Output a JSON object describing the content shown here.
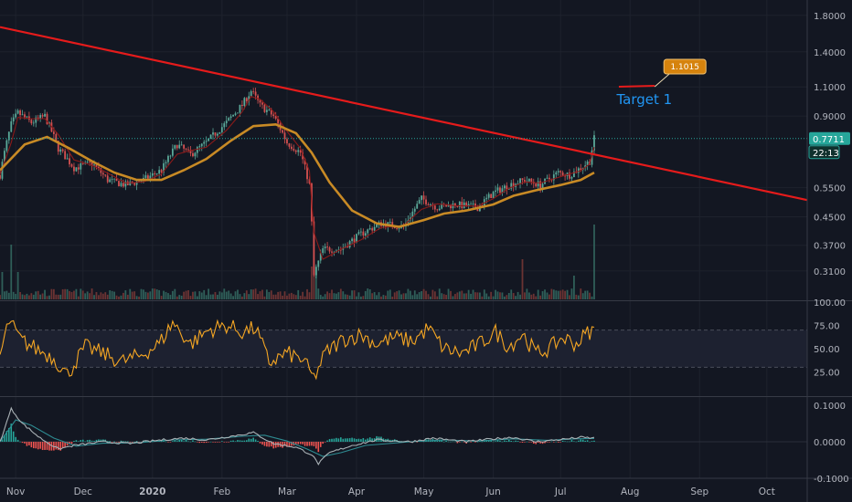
{
  "colors": {
    "background": "#131722",
    "grid": "#1e222d",
    "axis_text": "#b2b5be",
    "trendline": "#e51b1b",
    "ma_slow": "#c88a25",
    "ma_fast": "#8a1a1a",
    "candle_up": "#5aa898",
    "candle_down": "#d45050",
    "price_tag": "#26a69a",
    "rsi": "#f5a623",
    "macd": "#a9b1b5",
    "signal": "#2e8b91",
    "callout": "#d6830d",
    "target_text": "#2196f3"
  },
  "chart_data": [
    {
      "type": "candlestick",
      "panel": "price",
      "y_scale": "log",
      "ylim": [
        0.255,
        2.0
      ],
      "price_ticks": [
        "1.8000",
        "1.4000",
        "1.1000",
        "0.9000",
        "0.5500",
        "0.4500",
        "0.3700",
        "0.3100"
      ],
      "x_range": [
        "2019-10-25",
        "2020-10-19"
      ],
      "x_ticks": [
        {
          "label": "Nov",
          "date": "2019-11-01"
        },
        {
          "label": "Dec",
          "date": "2019-12-01"
        },
        {
          "label": "2020",
          "date": "2020-01-01"
        },
        {
          "label": "Feb",
          "date": "2020-02-01"
        },
        {
          "label": "Mar",
          "date": "2020-03-01"
        },
        {
          "label": "Apr",
          "date": "2020-04-01"
        },
        {
          "label": "May",
          "date": "2020-05-01"
        },
        {
          "label": "Jun",
          "date": "2020-06-01"
        },
        {
          "label": "Jul",
          "date": "2020-07-01"
        },
        {
          "label": "Aug",
          "date": "2020-08-01"
        },
        {
          "label": "Sep",
          "date": "2020-09-01"
        },
        {
          "label": "Oct",
          "date": "2020-10-01"
        }
      ],
      "close_path": [
        [
          "2019-10-25",
          0.6
        ],
        [
          "2019-10-30",
          0.85
        ],
        [
          "2019-11-02",
          0.92
        ],
        [
          "2019-11-08",
          0.86
        ],
        [
          "2019-11-14",
          0.9
        ],
        [
          "2019-11-20",
          0.72
        ],
        [
          "2019-11-27",
          0.63
        ],
        [
          "2019-12-05",
          0.65
        ],
        [
          "2019-12-12",
          0.58
        ],
        [
          "2019-12-20",
          0.56
        ],
        [
          "2019-12-28",
          0.58
        ],
        [
          "2020-01-05",
          0.62
        ],
        [
          "2020-01-12",
          0.74
        ],
        [
          "2020-01-18",
          0.69
        ],
        [
          "2020-01-25",
          0.75
        ],
        [
          "2020-02-03",
          0.86
        ],
        [
          "2020-02-10",
          0.97
        ],
        [
          "2020-02-14",
          1.07
        ],
        [
          "2020-02-18",
          0.97
        ],
        [
          "2020-02-24",
          0.9
        ],
        [
          "2020-03-01",
          0.75
        ],
        [
          "2020-03-07",
          0.7
        ],
        [
          "2020-03-11",
          0.56
        ],
        [
          "2020-03-13",
          0.3
        ],
        [
          "2020-03-17",
          0.36
        ],
        [
          "2020-03-25",
          0.36
        ],
        [
          "2020-04-03",
          0.4
        ],
        [
          "2020-04-12",
          0.43
        ],
        [
          "2020-04-22",
          0.42
        ],
        [
          "2020-04-30",
          0.51
        ],
        [
          "2020-05-07",
          0.48
        ],
        [
          "2020-05-15",
          0.49
        ],
        [
          "2020-05-25",
          0.48
        ],
        [
          "2020-06-01",
          0.53
        ],
        [
          "2020-06-08",
          0.56
        ],
        [
          "2020-06-15",
          0.58
        ],
        [
          "2020-06-22",
          0.56
        ],
        [
          "2020-06-30",
          0.61
        ],
        [
          "2020-07-05",
          0.6
        ],
        [
          "2020-07-10",
          0.63
        ],
        [
          "2020-07-14",
          0.66
        ],
        [
          "2020-07-16",
          0.7711
        ]
      ],
      "ma_slow_path": [
        [
          "2019-10-25",
          0.62
        ],
        [
          "2019-11-05",
          0.74
        ],
        [
          "2019-11-15",
          0.78
        ],
        [
          "2019-11-25",
          0.72
        ],
        [
          "2019-12-05",
          0.66
        ],
        [
          "2019-12-15",
          0.61
        ],
        [
          "2019-12-25",
          0.58
        ],
        [
          "2020-01-05",
          0.58
        ],
        [
          "2020-01-15",
          0.62
        ],
        [
          "2020-01-25",
          0.67
        ],
        [
          "2020-02-05",
          0.76
        ],
        [
          "2020-02-15",
          0.84
        ],
        [
          "2020-02-25",
          0.85
        ],
        [
          "2020-03-05",
          0.8
        ],
        [
          "2020-03-12",
          0.7
        ],
        [
          "2020-03-20",
          0.57
        ],
        [
          "2020-03-30",
          0.47
        ],
        [
          "2020-04-10",
          0.43
        ],
        [
          "2020-04-20",
          0.42
        ],
        [
          "2020-05-01",
          0.44
        ],
        [
          "2020-05-10",
          0.46
        ],
        [
          "2020-05-20",
          0.47
        ],
        [
          "2020-06-01",
          0.49
        ],
        [
          "2020-06-10",
          0.52
        ],
        [
          "2020-06-20",
          0.54
        ],
        [
          "2020-07-01",
          0.56
        ],
        [
          "2020-07-10",
          0.58
        ],
        [
          "2020-07-16",
          0.61
        ]
      ],
      "trendline": {
        "from": [
          "2019-10-25",
          1.66
        ],
        "to": [
          "2020-10-19",
          0.505
        ],
        "color": "red"
      },
      "last_price": {
        "value": "0.7711",
        "countdown": "22:13"
      },
      "annotations": [
        {
          "type": "callout",
          "text": "1.1015",
          "date": "2020-08-12",
          "value": 1.1015
        },
        {
          "type": "label",
          "text": "Target 1"
        }
      ]
    },
    {
      "type": "bar",
      "panel": "volume",
      "note_values": "relative volume, visible spikes near 2019-10-30, 2020-03-13, 2020-06-14, 2020-07-16"
    },
    {
      "type": "line",
      "panel": "rsi",
      "ylim": [
        0,
        100
      ],
      "y_ticks": [
        "100.00",
        "75.00",
        "50.00",
        "25.00"
      ],
      "band": [
        30,
        70
      ],
      "values_path": [
        [
          "2019-10-25",
          42
        ],
        [
          "2019-10-29",
          80
        ],
        [
          "2019-11-03",
          60
        ],
        [
          "2019-11-10",
          50
        ],
        [
          "2019-11-18",
          40
        ],
        [
          "2019-11-24",
          22
        ],
        [
          "2019-12-02",
          52
        ],
        [
          "2019-12-10",
          45
        ],
        [
          "2019-12-18",
          36
        ],
        [
          "2019-12-26",
          42
        ],
        [
          "2020-01-04",
          55
        ],
        [
          "2020-01-10",
          78
        ],
        [
          "2020-01-18",
          55
        ],
        [
          "2020-01-26",
          70
        ],
        [
          "2020-02-03",
          75
        ],
        [
          "2020-02-10",
          68
        ],
        [
          "2020-02-16",
          72
        ],
        [
          "2020-02-22",
          35
        ],
        [
          "2020-03-01",
          45
        ],
        [
          "2020-03-08",
          38
        ],
        [
          "2020-03-13",
          18
        ],
        [
          "2020-03-18",
          45
        ],
        [
          "2020-03-26",
          60
        ],
        [
          "2020-04-03",
          65
        ],
        [
          "2020-04-10",
          55
        ],
        [
          "2020-04-18",
          62
        ],
        [
          "2020-04-26",
          58
        ],
        [
          "2020-05-03",
          72
        ],
        [
          "2020-05-10",
          50
        ],
        [
          "2020-05-18",
          45
        ],
        [
          "2020-05-26",
          55
        ],
        [
          "2020-06-02",
          68
        ],
        [
          "2020-06-08",
          52
        ],
        [
          "2020-06-14",
          66
        ],
        [
          "2020-06-20",
          45
        ],
        [
          "2020-06-26",
          50
        ],
        [
          "2020-07-02",
          62
        ],
        [
          "2020-07-08",
          55
        ],
        [
          "2020-07-13",
          67
        ],
        [
          "2020-07-16",
          70
        ]
      ]
    },
    {
      "type": "line",
      "panel": "macd",
      "ylim": [
        -0.1,
        0.12
      ],
      "y_ticks": [
        "0.1000",
        "0.0000",
        "-0.1000"
      ],
      "macd_path": [
        [
          "2019-10-25",
          0.0
        ],
        [
          "2019-10-30",
          0.09
        ],
        [
          "2019-11-04",
          0.05
        ],
        [
          "2019-11-12",
          0.01
        ],
        [
          "2019-11-20",
          -0.02
        ],
        [
          "2019-11-27",
          -0.01
        ],
        [
          "2019-12-10",
          0.0
        ],
        [
          "2019-12-22",
          -0.005
        ],
        [
          "2020-01-05",
          0.005
        ],
        [
          "2020-01-15",
          0.01
        ],
        [
          "2020-01-25",
          0.005
        ],
        [
          "2020-02-05",
          0.015
        ],
        [
          "2020-02-15",
          0.025
        ],
        [
          "2020-02-24",
          -0.005
        ],
        [
          "2020-03-05",
          -0.015
        ],
        [
          "2020-03-12",
          -0.035
        ],
        [
          "2020-03-15",
          -0.06
        ],
        [
          "2020-03-20",
          -0.03
        ],
        [
          "2020-03-30",
          -0.01
        ],
        [
          "2020-04-10",
          0.005
        ],
        [
          "2020-04-25",
          0.0
        ],
        [
          "2020-05-05",
          0.01
        ],
        [
          "2020-05-20",
          0.0
        ],
        [
          "2020-06-01",
          0.008
        ],
        [
          "2020-06-10",
          0.012
        ],
        [
          "2020-06-20",
          0.0
        ],
        [
          "2020-07-01",
          0.006
        ],
        [
          "2020-07-10",
          0.012
        ],
        [
          "2020-07-16",
          0.01
        ]
      ],
      "signal_path": [
        [
          "2019-10-25",
          0.0
        ],
        [
          "2019-11-01",
          0.06
        ],
        [
          "2019-11-08",
          0.045
        ],
        [
          "2019-11-18",
          0.01
        ],
        [
          "2019-11-28",
          -0.012
        ],
        [
          "2019-12-10",
          -0.004
        ],
        [
          "2019-12-25",
          -0.003
        ],
        [
          "2020-01-10",
          0.005
        ],
        [
          "2020-01-25",
          0.007
        ],
        [
          "2020-02-10",
          0.015
        ],
        [
          "2020-02-20",
          0.018
        ],
        [
          "2020-03-01",
          0.002
        ],
        [
          "2020-03-10",
          -0.02
        ],
        [
          "2020-03-17",
          -0.04
        ],
        [
          "2020-03-25",
          -0.03
        ],
        [
          "2020-04-05",
          -0.01
        ],
        [
          "2020-04-25",
          0.0
        ],
        [
          "2020-05-10",
          0.005
        ],
        [
          "2020-05-25",
          0.002
        ],
        [
          "2020-06-10",
          0.008
        ],
        [
          "2020-06-25",
          0.004
        ],
        [
          "2020-07-08",
          0.008
        ],
        [
          "2020-07-16",
          0.009
        ]
      ]
    }
  ]
}
